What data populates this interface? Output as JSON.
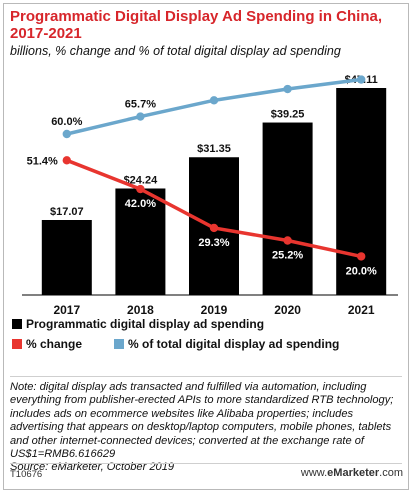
{
  "header": {
    "title_line1": "Programmatic Digital Display Ad Spending in China,",
    "title_line2": "2017-2021",
    "subtitle": "billions, % change and % of total digital display ad spending"
  },
  "chart_data": {
    "type": "bar",
    "categories": [
      "2017",
      "2018",
      "2019",
      "2020",
      "2021"
    ],
    "series": [
      {
        "name": "Programmatic digital display ad spending",
        "type": "bar",
        "color": "#000000",
        "values": [
          17.07,
          24.24,
          31.35,
          39.25,
          47.11
        ],
        "labels": [
          "$17.07",
          "$24.24",
          "$31.35",
          "$39.25",
          "$47.11"
        ]
      },
      {
        "name": "% change",
        "type": "line",
        "color": "#e8352f",
        "values": [
          51.4,
          42.0,
          29.3,
          25.2,
          20.0
        ],
        "labels": [
          "51.4%",
          "42.0%",
          "29.3%",
          "25.2%",
          "20.0%"
        ]
      },
      {
        "name": "% of total digital display ad spending",
        "type": "line",
        "color": "#6ba7cc",
        "values": [
          60.0,
          65.7,
          71.0,
          74.7,
          77.8
        ],
        "labels": [
          "60.0%",
          "65.7%",
          "71.0%",
          "74.7%",
          "77.8%"
        ]
      }
    ],
    "legend_position": "bottom-left"
  },
  "footer": {
    "note": "Note: digital display ads transacted and fulfilled via automation, including everything from publisher-erected APIs to more standardized RTB technology; includes ads on ecommerce websites like Alibaba properties; includes advertising that appears on desktop/laptop computers, mobile phones, tablets and other internet-connected devices; converted at the exchange rate of US$1=RMB6.616629",
    "source": "Source: eMarketer, October 2019",
    "code": "T10676",
    "brand_prefix": "www.",
    "brand_bold": "eMarketer",
    "brand_suffix": ".com"
  }
}
